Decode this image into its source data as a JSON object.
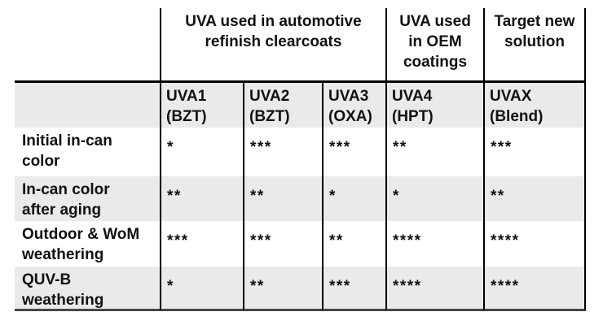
{
  "table": {
    "top_headers": [
      {
        "label": "UVA used in automotive\nrefinish clearcoats",
        "span": 3
      },
      {
        "label": "UVA used\nin OEM\ncoatings",
        "span": 1
      },
      {
        "label": "Target new\nsolution",
        "span": 1
      }
    ],
    "column_headers": [
      {
        "label": "UVA1\n(BZT)"
      },
      {
        "label": "UVA2\n(BZT)"
      },
      {
        "label": "UVA3\n(OXA)"
      },
      {
        "label": "UVA4\n(HPT)"
      },
      {
        "label": "UVAX\n(Blend)"
      }
    ],
    "rows": [
      {
        "label": "Initial in-can\ncolor",
        "values": [
          "*",
          "***",
          "***",
          "**",
          "***"
        ]
      },
      {
        "label": "In-can color\nafter aging",
        "values": [
          "**",
          "**",
          "*",
          "*",
          "**"
        ]
      },
      {
        "label": "Outdoor & WoM\nweathering",
        "values": [
          "***",
          "***",
          "**",
          "****",
          "****"
        ]
      },
      {
        "label": "QUV-B\nweathering",
        "values": [
          "*",
          "**",
          "***",
          "****",
          "****"
        ]
      }
    ]
  },
  "chart_data": {
    "type": "table",
    "title": "",
    "column_groups": [
      {
        "label": "UVA used in automotive refinish clearcoats",
        "columns": [
          "UVA1 (BZT)",
          "UVA2 (BZT)",
          "UVA3 (OXA)"
        ]
      },
      {
        "label": "UVA used in OEM coatings",
        "columns": [
          "UVA4 (HPT)"
        ]
      },
      {
        "label": "Target new solution",
        "columns": [
          "UVAX (Blend)"
        ]
      }
    ],
    "columns": [
      "UVA1 (BZT)",
      "UVA2 (BZT)",
      "UVA3 (OXA)",
      "UVA4 (HPT)",
      "UVAX (Blend)"
    ],
    "row_labels": [
      "Initial in-can color",
      "In-can color after aging",
      "Outdoor & WoM weathering",
      "QUV-B weathering"
    ],
    "rating_symbol": "*",
    "ratings_star_counts": [
      [
        1,
        3,
        3,
        2,
        3
      ],
      [
        2,
        2,
        1,
        1,
        2
      ],
      [
        3,
        3,
        2,
        4,
        4
      ],
      [
        1,
        2,
        3,
        4,
        4
      ]
    ]
  },
  "colors": {
    "background": "#ffffff",
    "row_shade": "#e9eaeb",
    "border": "#000000",
    "bottom_border": "#474747",
    "text": "#111111"
  }
}
